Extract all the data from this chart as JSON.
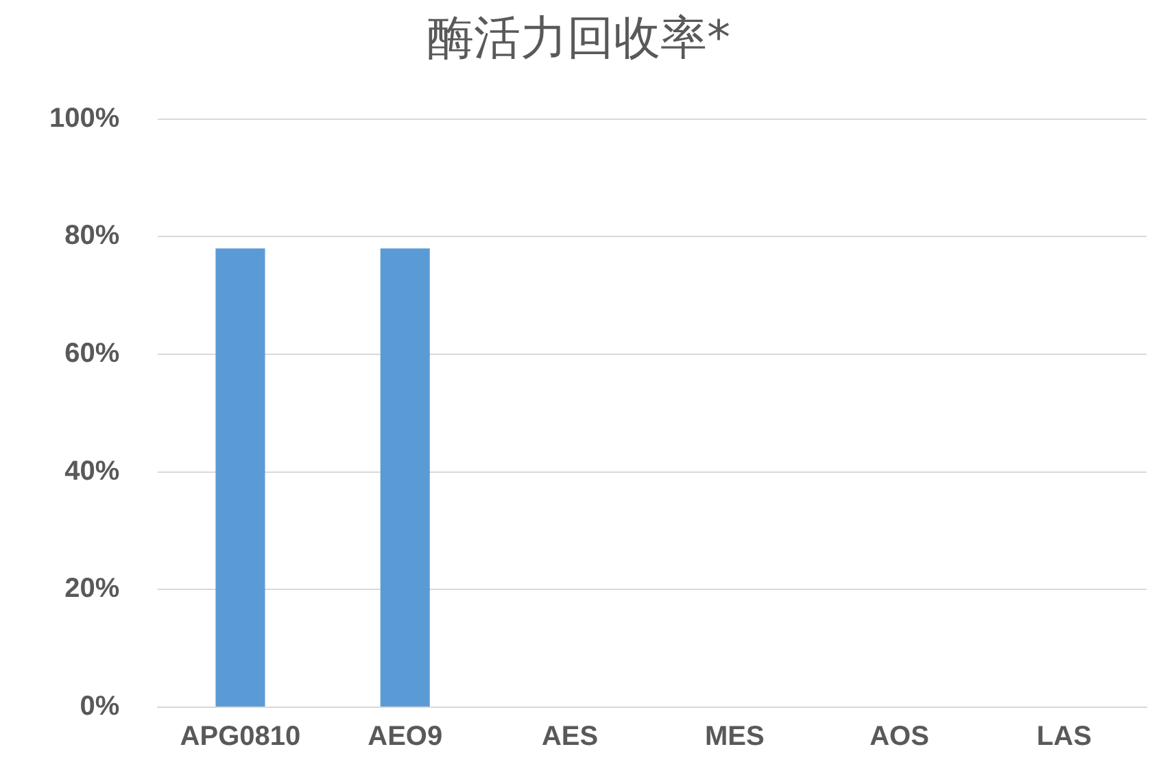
{
  "chart_data": {
    "type": "bar",
    "title": "酶活力回收率*",
    "categories": [
      "APG0810",
      "AEO9",
      "AES",
      "MES",
      "AOS",
      "LAS"
    ],
    "values": [
      78,
      78,
      0,
      0,
      0,
      0
    ],
    "color": "#5b9bd5",
    "ylim": [
      0,
      100
    ],
    "yticks": [
      {
        "value": 0,
        "label": "0%"
      },
      {
        "value": 20,
        "label": "20%"
      },
      {
        "value": 40,
        "label": "40%"
      },
      {
        "value": 60,
        "label": "60%"
      },
      {
        "value": 80,
        "label": "80%"
      },
      {
        "value": 100,
        "label": "100%"
      }
    ],
    "grid": "y",
    "legend": false
  }
}
